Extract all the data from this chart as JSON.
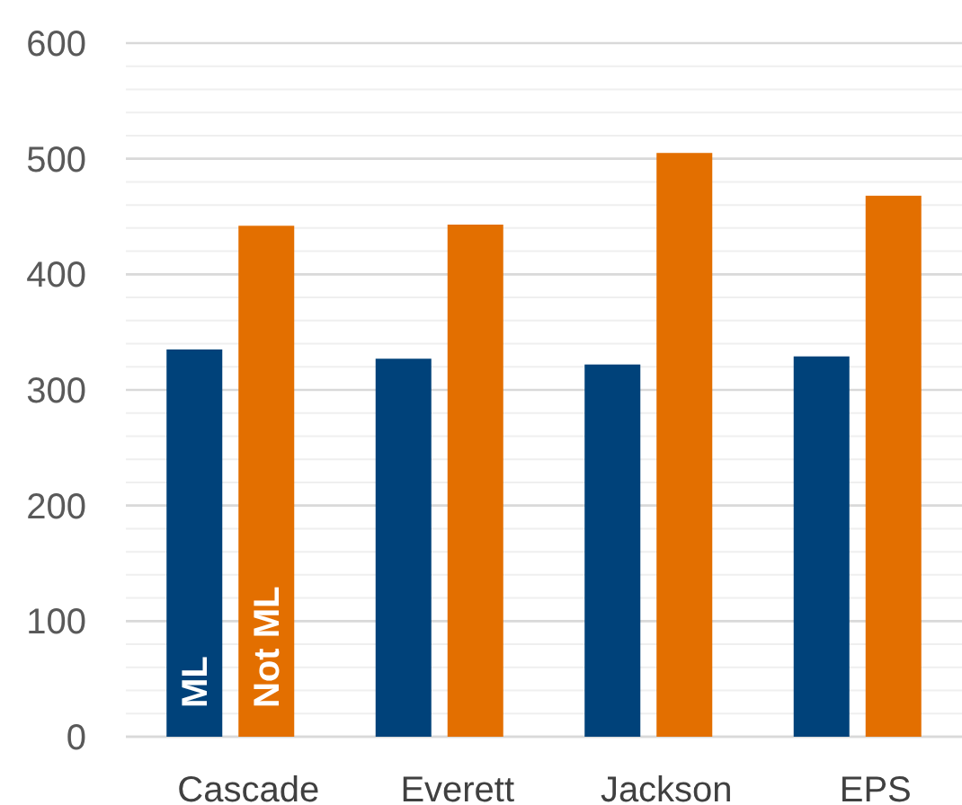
{
  "chart_data": {
    "type": "bar",
    "categories": [
      "Cascade",
      "Everett",
      "Jackson",
      "EPS"
    ],
    "series": [
      {
        "name": "ML",
        "color": "#00427a",
        "values": [
          335,
          327,
          322,
          329
        ]
      },
      {
        "name": "Not ML",
        "color": "#e36f00",
        "values": [
          442,
          443,
          505,
          468
        ]
      }
    ],
    "ylim": [
      0,
      600
    ],
    "yticks": [
      0,
      {
        "value": 20,
        "label": null
      },
      {
        "value": 40,
        "label": null
      },
      {
        "value": 60,
        "label": null
      },
      {
        "value": 80,
        "label": null
      },
      100,
      {
        "value": 120,
        "label": null
      },
      {
        "value": 140,
        "label": null
      },
      {
        "value": 160,
        "label": null
      },
      {
        "value": 180,
        "label": null
      },
      200,
      {
        "value": 220,
        "label": null
      },
      {
        "value": 240,
        "label": null
      },
      {
        "value": 260,
        "label": null
      },
      {
        "value": 280,
        "label": null
      },
      300,
      {
        "value": 320,
        "label": null
      },
      {
        "value": 340,
        "label": null
      },
      {
        "value": 360,
        "label": null
      },
      {
        "value": 380,
        "label": null
      },
      400,
      {
        "value": 420,
        "label": null
      },
      {
        "value": 440,
        "label": null
      },
      {
        "value": 460,
        "label": null
      },
      {
        "value": 480,
        "label": null
      },
      500,
      {
        "value": 520,
        "label": null
      },
      {
        "value": 540,
        "label": null
      },
      {
        "value": 560,
        "label": null
      },
      {
        "value": 580,
        "label": null
      },
      600
    ],
    "grid": "y"
  }
}
